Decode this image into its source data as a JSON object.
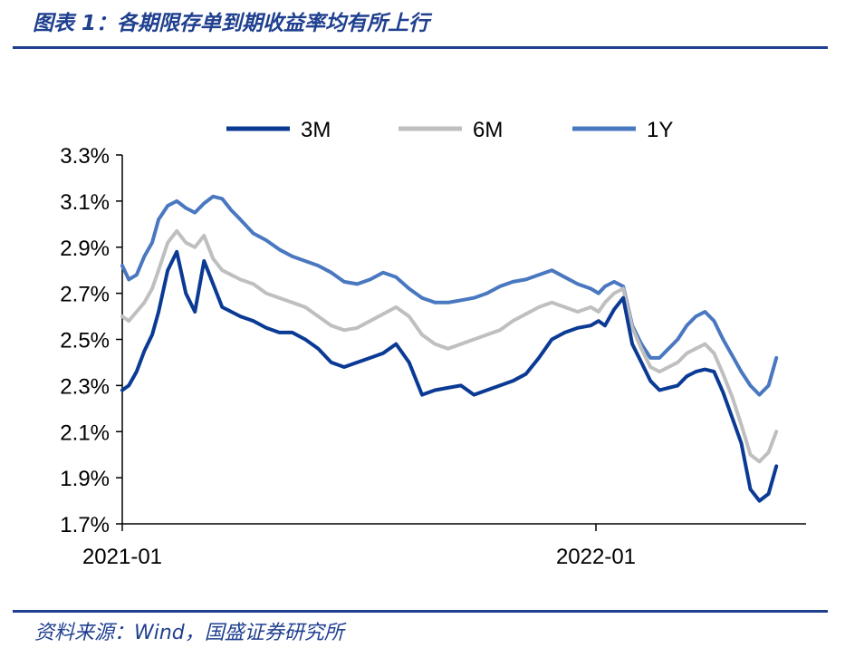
{
  "header": {
    "title": "图表 1：各期限存单到期收益率均有所上行"
  },
  "footer": {
    "source": "资料来源：Wind，国盛证券研究所"
  },
  "colors": {
    "accent": "#1f3f8f",
    "s3m": "#0b3a94",
    "s6m": "#bfbfbf",
    "s1y": "#4a78c0"
  },
  "chart_data": {
    "type": "line",
    "title": "",
    "xlabel": "",
    "ylabel": "",
    "legend_position": "top",
    "grid": false,
    "x_ticks": [
      "2021-01",
      "2022-01"
    ],
    "y_ticks": [
      "3.3%",
      "3.1%",
      "2.9%",
      "2.7%",
      "2.5%",
      "2.3%",
      "2.1%",
      "1.9%",
      "1.7%"
    ],
    "ylim": [
      1.7,
      3.3
    ],
    "xlim": [
      "2021-01-01",
      "2022-05-20"
    ],
    "x": [
      "2021-01-01",
      "2021-01-06",
      "2021-01-12",
      "2021-01-18",
      "2021-01-24",
      "2021-01-29",
      "2021-02-05",
      "2021-02-12",
      "2021-02-19",
      "2021-02-26",
      "2021-03-05",
      "2021-03-12",
      "2021-03-19",
      "2021-03-26",
      "2021-04-02",
      "2021-04-12",
      "2021-04-22",
      "2021-05-02",
      "2021-05-12",
      "2021-05-22",
      "2021-06-01",
      "2021-06-11",
      "2021-06-21",
      "2021-07-01",
      "2021-07-11",
      "2021-07-21",
      "2021-07-31",
      "2021-08-10",
      "2021-08-20",
      "2021-08-30",
      "2021-09-09",
      "2021-09-19",
      "2021-09-29",
      "2021-10-09",
      "2021-10-19",
      "2021-10-29",
      "2021-11-08",
      "2021-11-18",
      "2021-11-28",
      "2021-12-08",
      "2021-12-18",
      "2021-12-28",
      "2022-01-03",
      "2022-01-08",
      "2022-01-15",
      "2022-01-22",
      "2022-01-29",
      "2022-02-05",
      "2022-02-12",
      "2022-02-19",
      "2022-02-26",
      "2022-03-05",
      "2022-03-12",
      "2022-03-19",
      "2022-03-26",
      "2022-04-02",
      "2022-04-09",
      "2022-04-16",
      "2022-04-23",
      "2022-04-30",
      "2022-05-07",
      "2022-05-14",
      "2022-05-20"
    ],
    "series": [
      {
        "name": "3M",
        "values": [
          2.28,
          2.3,
          2.36,
          2.45,
          2.52,
          2.62,
          2.8,
          2.88,
          2.7,
          2.62,
          2.84,
          2.74,
          2.64,
          2.62,
          2.6,
          2.58,
          2.55,
          2.53,
          2.53,
          2.5,
          2.46,
          2.4,
          2.38,
          2.4,
          2.42,
          2.44,
          2.48,
          2.4,
          2.26,
          2.28,
          2.29,
          2.3,
          2.26,
          2.28,
          2.3,
          2.32,
          2.35,
          2.42,
          2.5,
          2.53,
          2.55,
          2.56,
          2.58,
          2.56,
          2.63,
          2.68,
          2.48,
          2.4,
          2.32,
          2.28,
          2.29,
          2.3,
          2.34,
          2.36,
          2.37,
          2.36,
          2.27,
          2.16,
          2.05,
          1.85,
          1.8,
          1.83,
          1.95
        ]
      },
      {
        "name": "6M",
        "values": [
          2.6,
          2.58,
          2.62,
          2.66,
          2.72,
          2.8,
          2.92,
          2.97,
          2.92,
          2.9,
          2.95,
          2.85,
          2.8,
          2.78,
          2.76,
          2.74,
          2.7,
          2.68,
          2.66,
          2.64,
          2.6,
          2.56,
          2.54,
          2.55,
          2.58,
          2.61,
          2.64,
          2.6,
          2.52,
          2.48,
          2.46,
          2.48,
          2.5,
          2.52,
          2.54,
          2.58,
          2.61,
          2.64,
          2.66,
          2.64,
          2.62,
          2.64,
          2.62,
          2.66,
          2.7,
          2.72,
          2.55,
          2.46,
          2.38,
          2.36,
          2.38,
          2.4,
          2.44,
          2.46,
          2.48,
          2.44,
          2.35,
          2.25,
          2.13,
          2.0,
          1.97,
          2.01,
          2.1
        ]
      },
      {
        "name": "1Y",
        "values": [
          2.82,
          2.76,
          2.78,
          2.86,
          2.92,
          3.02,
          3.08,
          3.1,
          3.07,
          3.05,
          3.09,
          3.12,
          3.11,
          3.06,
          3.02,
          2.96,
          2.93,
          2.89,
          2.86,
          2.84,
          2.82,
          2.79,
          2.75,
          2.74,
          2.76,
          2.79,
          2.77,
          2.72,
          2.68,
          2.66,
          2.66,
          2.67,
          2.68,
          2.7,
          2.73,
          2.75,
          2.76,
          2.78,
          2.8,
          2.77,
          2.74,
          2.72,
          2.7,
          2.73,
          2.75,
          2.73,
          2.56,
          2.48,
          2.42,
          2.42,
          2.46,
          2.5,
          2.56,
          2.6,
          2.62,
          2.58,
          2.5,
          2.43,
          2.36,
          2.3,
          2.26,
          2.3,
          2.42
        ]
      }
    ]
  }
}
